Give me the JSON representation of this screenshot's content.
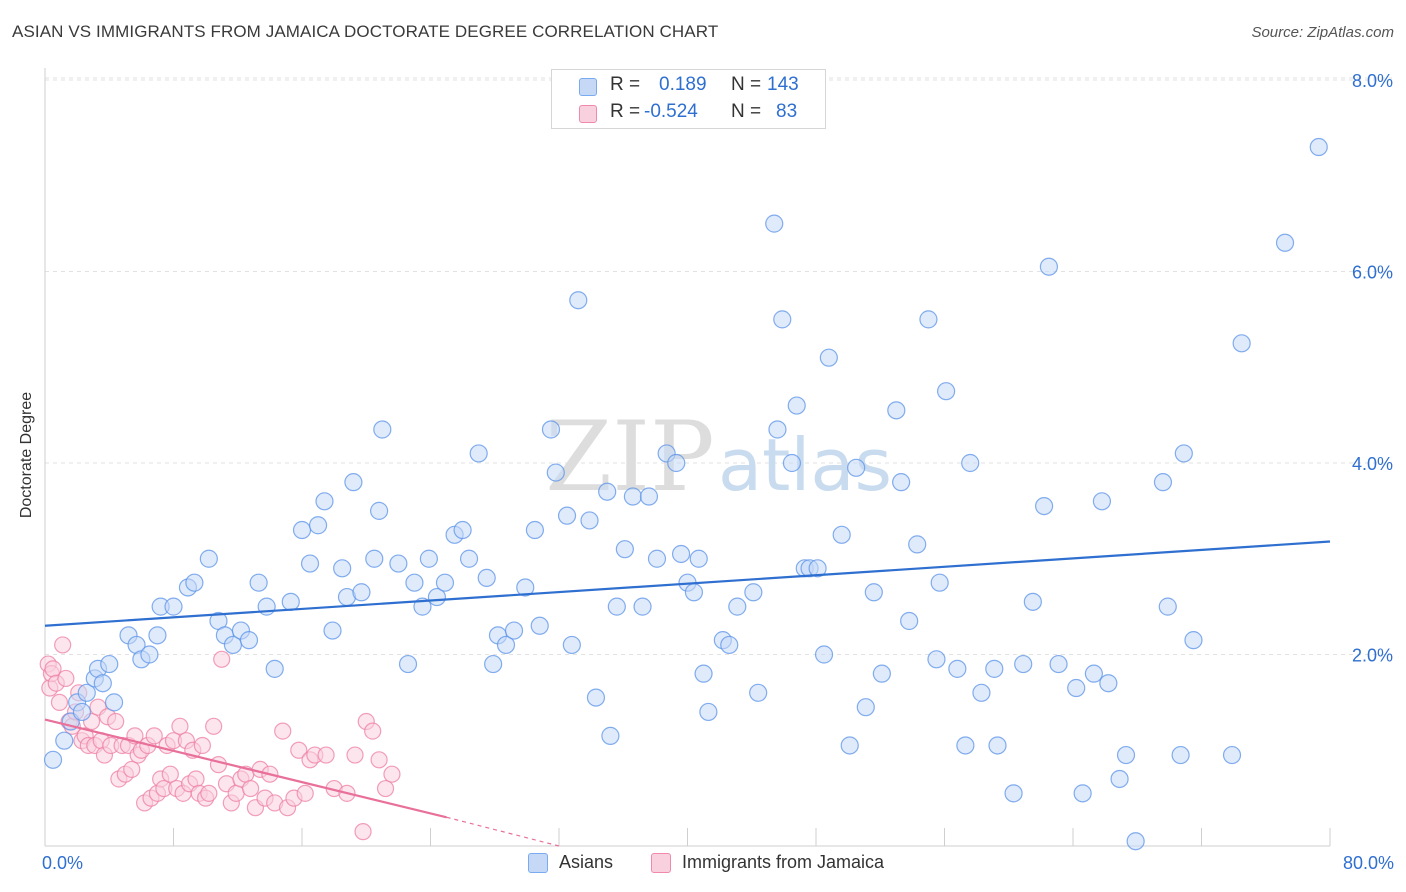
{
  "header": {
    "title": "ASIAN VS IMMIGRANTS FROM JAMAICA DOCTORATE DEGREE CORRELATION CHART",
    "source": "Source: ZipAtlas.com"
  },
  "watermark": {
    "zip": "ZIP",
    "atlas": "atlas"
  },
  "legend": {
    "rows": [
      {
        "r_label": "R =",
        "r_value": "0.189",
        "n_label": "N =",
        "n_value": "143",
        "color": "#7aaaf0",
        "fill": "#c5d9f7"
      },
      {
        "r_label": "R =",
        "r_value": "-0.524",
        "n_label": "N =",
        "n_value": "83",
        "color": "#f08aaa",
        "fill": "#f9d0de"
      }
    ]
  },
  "bottom_legend": {
    "items": [
      {
        "label": "Asians",
        "color": "#7aaaf0",
        "fill": "#c5d9f7"
      },
      {
        "label": "Immigrants from Jamaica",
        "color": "#f08aaa",
        "fill": "#f9d0de"
      }
    ]
  },
  "axes": {
    "ylabel": "Doctorate Degree",
    "x_min_label": "0.0%",
    "x_max_label": "80.0%",
    "y_tick_labels": [
      "2.0%",
      "4.0%",
      "6.0%",
      "8.0%"
    ]
  },
  "chart_data": {
    "type": "scatter",
    "title": "ASIAN VS IMMIGRANTS FROM JAMAICA DOCTORATE DEGREE CORRELATION CHART",
    "xlabel": "",
    "ylabel": "Doctorate Degree",
    "xlim": [
      0,
      80
    ],
    "ylim": [
      0,
      8.2
    ],
    "x_unit": "%",
    "y_unit": "%",
    "y_ticks": [
      2,
      4,
      6,
      8
    ],
    "grid": "horizontal dashed",
    "legend_position": "top-center",
    "series": [
      {
        "name": "Asians",
        "color": "#5b93e8",
        "fill": "#c5d9f7",
        "r": 0.189,
        "n": 143,
        "trend": {
          "x": [
            0,
            80
          ],
          "y": [
            2.3,
            3.18
          ]
        },
        "points": [
          [
            0.5,
            0.9
          ],
          [
            1.2,
            1.1
          ],
          [
            1.6,
            1.3
          ],
          [
            2.0,
            1.5
          ],
          [
            2.3,
            1.4
          ],
          [
            2.6,
            1.6
          ],
          [
            3.1,
            1.75
          ],
          [
            3.3,
            1.85
          ],
          [
            3.6,
            1.7
          ],
          [
            4.0,
            1.9
          ],
          [
            4.3,
            1.5
          ],
          [
            5.2,
            2.2
          ],
          [
            5.7,
            2.1
          ],
          [
            6.0,
            1.95
          ],
          [
            6.5,
            2.0
          ],
          [
            7.0,
            2.2
          ],
          [
            7.2,
            2.5
          ],
          [
            8.0,
            2.5
          ],
          [
            8.9,
            2.7
          ],
          [
            9.3,
            2.75
          ],
          [
            10.2,
            3.0
          ],
          [
            10.8,
            2.35
          ],
          [
            11.2,
            2.2
          ],
          [
            11.7,
            2.1
          ],
          [
            12.2,
            2.25
          ],
          [
            12.7,
            2.15
          ],
          [
            13.3,
            2.75
          ],
          [
            13.8,
            2.5
          ],
          [
            14.3,
            1.85
          ],
          [
            15.3,
            2.55
          ],
          [
            16.0,
            3.3
          ],
          [
            16.5,
            2.95
          ],
          [
            17.0,
            3.35
          ],
          [
            17.4,
            3.6
          ],
          [
            17.9,
            2.25
          ],
          [
            18.5,
            2.9
          ],
          [
            18.8,
            2.6
          ],
          [
            19.2,
            3.8
          ],
          [
            19.7,
            2.65
          ],
          [
            20.5,
            3.0
          ],
          [
            20.8,
            3.5
          ],
          [
            21.0,
            4.35
          ],
          [
            22.0,
            2.95
          ],
          [
            22.6,
            1.9
          ],
          [
            23.0,
            2.75
          ],
          [
            23.5,
            2.5
          ],
          [
            23.9,
            3.0
          ],
          [
            24.4,
            2.6
          ],
          [
            24.9,
            2.75
          ],
          [
            25.5,
            3.25
          ],
          [
            26.0,
            3.3
          ],
          [
            26.4,
            3.0
          ],
          [
            27.0,
            4.1
          ],
          [
            27.5,
            2.8
          ],
          [
            27.9,
            1.9
          ],
          [
            28.2,
            2.2
          ],
          [
            28.7,
            2.1
          ],
          [
            29.2,
            2.25
          ],
          [
            29.9,
            2.7
          ],
          [
            30.5,
            3.3
          ],
          [
            30.8,
            2.3
          ],
          [
            31.5,
            4.35
          ],
          [
            31.8,
            3.9
          ],
          [
            32.5,
            3.45
          ],
          [
            32.8,
            2.1
          ],
          [
            33.2,
            5.7
          ],
          [
            33.9,
            3.4
          ],
          [
            34.3,
            1.55
          ],
          [
            35.0,
            3.7
          ],
          [
            35.2,
            1.15
          ],
          [
            35.6,
            2.5
          ],
          [
            36.1,
            3.1
          ],
          [
            36.6,
            3.65
          ],
          [
            37.2,
            2.5
          ],
          [
            37.6,
            3.65
          ],
          [
            38.1,
            3.0
          ],
          [
            38.7,
            4.1
          ],
          [
            39.3,
            4.0
          ],
          [
            39.6,
            3.05
          ],
          [
            40.0,
            2.75
          ],
          [
            40.4,
            2.65
          ],
          [
            40.7,
            3.0
          ],
          [
            41.0,
            1.8
          ],
          [
            41.3,
            1.4
          ],
          [
            42.2,
            2.15
          ],
          [
            42.6,
            2.1
          ],
          [
            43.1,
            2.5
          ],
          [
            44.1,
            2.65
          ],
          [
            44.4,
            1.6
          ],
          [
            45.4,
            6.5
          ],
          [
            45.6,
            4.35
          ],
          [
            45.9,
            5.5
          ],
          [
            46.5,
            4.0
          ],
          [
            46.8,
            4.6
          ],
          [
            47.3,
            2.9
          ],
          [
            47.6,
            2.9
          ],
          [
            48.1,
            2.9
          ],
          [
            48.5,
            2.0
          ],
          [
            48.8,
            5.1
          ],
          [
            49.6,
            3.25
          ],
          [
            50.1,
            1.05
          ],
          [
            50.5,
            3.95
          ],
          [
            51.1,
            1.45
          ],
          [
            51.6,
            2.65
          ],
          [
            52.1,
            1.8
          ],
          [
            53.0,
            4.55
          ],
          [
            53.3,
            3.8
          ],
          [
            53.8,
            2.35
          ],
          [
            54.3,
            3.15
          ],
          [
            55.0,
            5.5
          ],
          [
            55.5,
            1.95
          ],
          [
            55.7,
            2.75
          ],
          [
            56.1,
            4.75
          ],
          [
            56.8,
            1.85
          ],
          [
            57.3,
            1.05
          ],
          [
            57.6,
            4.0
          ],
          [
            58.3,
            1.6
          ],
          [
            59.1,
            1.85
          ],
          [
            59.3,
            1.05
          ],
          [
            60.3,
            0.55
          ],
          [
            60.9,
            1.9
          ],
          [
            61.5,
            2.55
          ],
          [
            62.2,
            3.55
          ],
          [
            62.5,
            6.05
          ],
          [
            63.1,
            1.9
          ],
          [
            64.2,
            1.65
          ],
          [
            64.6,
            0.55
          ],
          [
            65.3,
            1.8
          ],
          [
            65.8,
            3.6
          ],
          [
            66.2,
            1.7
          ],
          [
            66.9,
            0.7
          ],
          [
            67.3,
            0.95
          ],
          [
            67.9,
            0.05
          ],
          [
            69.6,
            3.8
          ],
          [
            69.9,
            2.5
          ],
          [
            70.7,
            0.95
          ],
          [
            70.9,
            4.1
          ],
          [
            71.5,
            2.15
          ],
          [
            73.9,
            0.95
          ],
          [
            74.5,
            5.25
          ],
          [
            77.2,
            6.3
          ],
          [
            79.3,
            7.3
          ]
        ]
      },
      {
        "name": "Immigrants from Jamaica",
        "color": "#ee7fa3",
        "fill": "#f9d0de",
        "r": -0.524,
        "n": 83,
        "trend": {
          "x": [
            0,
            25
          ],
          "y": [
            1.32,
            0.3
          ]
        },
        "trend_dashed_to": [
          32,
          0.0
        ],
        "points": [
          [
            0.2,
            1.9
          ],
          [
            0.3,
            1.65
          ],
          [
            0.4,
            1.8
          ],
          [
            0.5,
            1.85
          ],
          [
            0.7,
            1.7
          ],
          [
            0.9,
            1.5
          ],
          [
            1.1,
            2.1
          ],
          [
            1.3,
            1.75
          ],
          [
            1.5,
            1.3
          ],
          [
            1.7,
            1.25
          ],
          [
            1.9,
            1.4
          ],
          [
            2.1,
            1.6
          ],
          [
            2.3,
            1.1
          ],
          [
            2.5,
            1.15
          ],
          [
            2.7,
            1.05
          ],
          [
            2.9,
            1.3
          ],
          [
            3.1,
            1.05
          ],
          [
            3.3,
            1.45
          ],
          [
            3.5,
            1.1
          ],
          [
            3.7,
            0.95
          ],
          [
            3.9,
            1.35
          ],
          [
            4.1,
            1.05
          ],
          [
            4.4,
            1.3
          ],
          [
            4.6,
            0.7
          ],
          [
            4.8,
            1.05
          ],
          [
            5.0,
            0.75
          ],
          [
            5.2,
            1.05
          ],
          [
            5.4,
            0.8
          ],
          [
            5.6,
            1.15
          ],
          [
            5.8,
            0.95
          ],
          [
            6.0,
            1.0
          ],
          [
            6.2,
            0.45
          ],
          [
            6.4,
            1.05
          ],
          [
            6.6,
            0.5
          ],
          [
            6.8,
            1.15
          ],
          [
            7.0,
            0.55
          ],
          [
            7.2,
            0.7
          ],
          [
            7.4,
            0.6
          ],
          [
            7.6,
            1.05
          ],
          [
            7.8,
            0.75
          ],
          [
            8.0,
            1.1
          ],
          [
            8.2,
            0.6
          ],
          [
            8.4,
            1.25
          ],
          [
            8.6,
            0.55
          ],
          [
            8.8,
            1.1
          ],
          [
            9.0,
            0.65
          ],
          [
            9.2,
            1.0
          ],
          [
            9.4,
            0.7
          ],
          [
            9.6,
            0.55
          ],
          [
            9.8,
            1.05
          ],
          [
            10.0,
            0.5
          ],
          [
            10.2,
            0.55
          ],
          [
            10.5,
            1.25
          ],
          [
            10.8,
            0.85
          ],
          [
            11.0,
            1.95
          ],
          [
            11.3,
            0.65
          ],
          [
            11.6,
            0.45
          ],
          [
            11.9,
            0.55
          ],
          [
            12.2,
            0.7
          ],
          [
            12.5,
            0.75
          ],
          [
            12.8,
            0.6
          ],
          [
            13.1,
            0.4
          ],
          [
            13.4,
            0.8
          ],
          [
            13.7,
            0.5
          ],
          [
            14.0,
            0.75
          ],
          [
            14.3,
            0.45
          ],
          [
            14.8,
            1.2
          ],
          [
            15.1,
            0.4
          ],
          [
            15.5,
            0.5
          ],
          [
            15.8,
            1.0
          ],
          [
            16.2,
            0.55
          ],
          [
            16.5,
            0.9
          ],
          [
            16.8,
            0.95
          ],
          [
            17.5,
            0.95
          ],
          [
            18.0,
            0.6
          ],
          [
            18.8,
            0.55
          ],
          [
            19.3,
            0.95
          ],
          [
            19.8,
            0.15
          ],
          [
            20.0,
            1.3
          ],
          [
            20.4,
            1.2
          ],
          [
            20.8,
            0.9
          ],
          [
            21.2,
            0.6
          ],
          [
            21.6,
            0.75
          ]
        ]
      }
    ]
  }
}
